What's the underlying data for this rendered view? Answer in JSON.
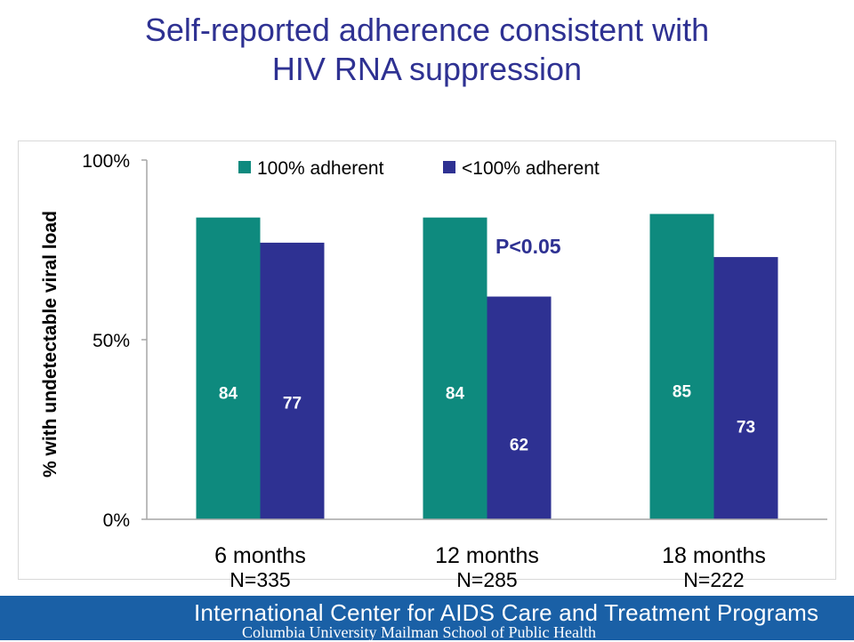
{
  "title_line1": "Self-reported adherence consistent with",
  "title_line2": "HIV RNA suppression",
  "annotation": "P<0.05",
  "colors": {
    "title": "#2e3192",
    "adherent": "#0e8a7e",
    "nonadherent": "#2e3192",
    "footer_bg": "#1a60a6"
  },
  "chart_data": {
    "type": "bar",
    "categories": [
      "6 months",
      "12 months",
      "18 months"
    ],
    "sample_sizes": [
      "N=335",
      "N=285",
      "N=222"
    ],
    "series": [
      {
        "name": "100% adherent",
        "values": [
          84,
          84,
          85
        ],
        "labels": [
          "84",
          "84",
          "85"
        ]
      },
      {
        "name": "<100% adherent",
        "values": [
          77,
          62,
          73
        ],
        "labels": [
          "77",
          "62",
          "73"
        ]
      }
    ],
    "ylabel": "% with undetectable viral load",
    "ylim": [
      0,
      100
    ],
    "yticks": [
      "0%",
      "50%",
      "100%"
    ],
    "legend_position": "top",
    "grid": false
  },
  "footer": {
    "line1": "International Center for AIDS Care and Treatment Programs",
    "line2": "Columbia University Mailman School of Public Health"
  }
}
